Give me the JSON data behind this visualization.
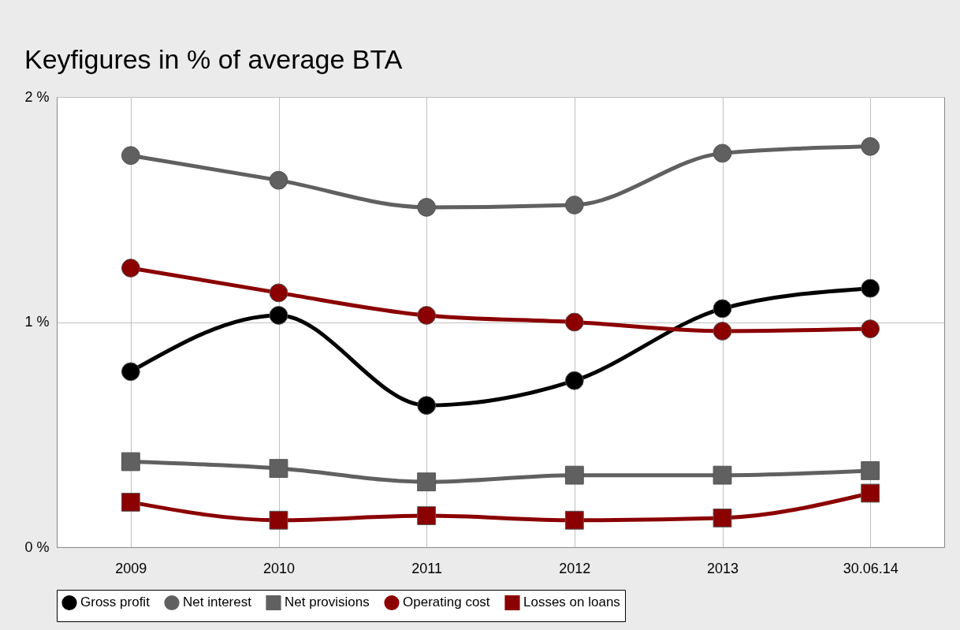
{
  "chart_data": {
    "type": "line",
    "title": "Keyfigures in % of average BTA",
    "categories": [
      "2009",
      "2010",
      "2011",
      "2012",
      "2013",
      "30.06.14"
    ],
    "ylim": [
      0,
      2
    ],
    "yticks": [
      {
        "value": 0,
        "label": "0 %"
      },
      {
        "value": 1,
        "label": "1 %"
      },
      {
        "value": 2,
        "label": "2 %"
      }
    ],
    "grid": true,
    "legend": "bottom",
    "series": [
      {
        "name": "Gross profit",
        "color": "#000000",
        "marker": "circle",
        "values": [
          0.78,
          1.03,
          0.63,
          0.74,
          1.06,
          1.15
        ]
      },
      {
        "name": "Net interest",
        "color": "#606060",
        "marker": "circle",
        "values": [
          1.74,
          1.63,
          1.51,
          1.52,
          1.75,
          1.78
        ]
      },
      {
        "name": "Net provisions",
        "color": "#606060",
        "marker": "square",
        "values": [
          0.38,
          0.35,
          0.29,
          0.32,
          0.32,
          0.34
        ]
      },
      {
        "name": "Operating cost",
        "color": "#8b0000",
        "marker": "circle",
        "values": [
          1.24,
          1.13,
          1.03,
          1.0,
          0.96,
          0.97
        ]
      },
      {
        "name": "Losses on loans",
        "color": "#8b0000",
        "marker": "square",
        "values": [
          0.2,
          0.12,
          0.14,
          0.12,
          0.13,
          0.24
        ]
      }
    ]
  }
}
